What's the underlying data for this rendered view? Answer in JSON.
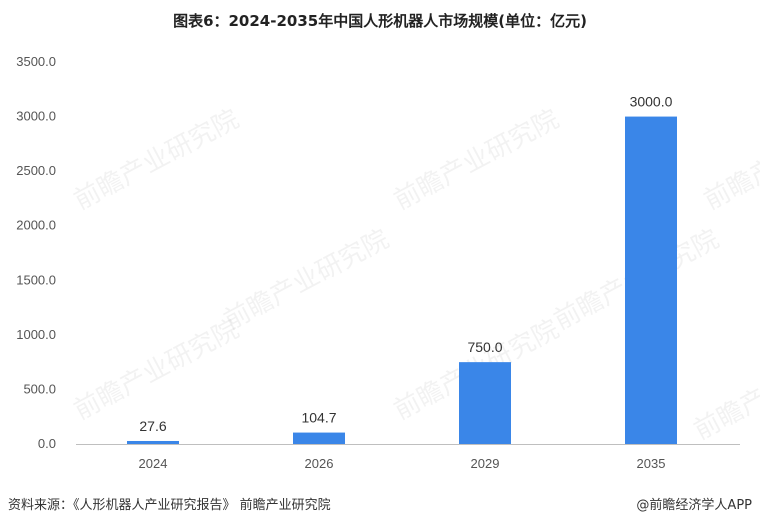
{
  "header": {
    "title": "图表6：2024-2035年中国人形机器人市场规模(单位：亿元)"
  },
  "footer": {
    "source": "资料来源：《人形机器人产业研究报告》 前瞻产业研究院",
    "credit": "@前瞻经济学人APP"
  },
  "watermark": {
    "text": "前瞻产业研究院"
  },
  "colors": {
    "bar": "#3a86e8",
    "axis": "#bfbfbf"
  },
  "chart_data": {
    "type": "bar",
    "title": "图表6：2024-2035年中国人形机器人市场规模(单位：亿元)",
    "categories": [
      "2024",
      "2026",
      "2029",
      "2035"
    ],
    "values": [
      27.6,
      104.7,
      750.0,
      3000.0
    ],
    "value_labels": [
      "27.6",
      "104.7",
      "750.0",
      "3000.0"
    ],
    "y_ticks": [
      0,
      500,
      1000,
      1500,
      2000,
      2500,
      3000,
      3500
    ],
    "y_tick_labels": [
      "0.0",
      "500.0",
      "1000.0",
      "1500.0",
      "2000.0",
      "2500.0",
      "3000.0",
      "3500.0"
    ],
    "ylim": [
      0,
      3500
    ],
    "grid": false,
    "legend": "none"
  }
}
